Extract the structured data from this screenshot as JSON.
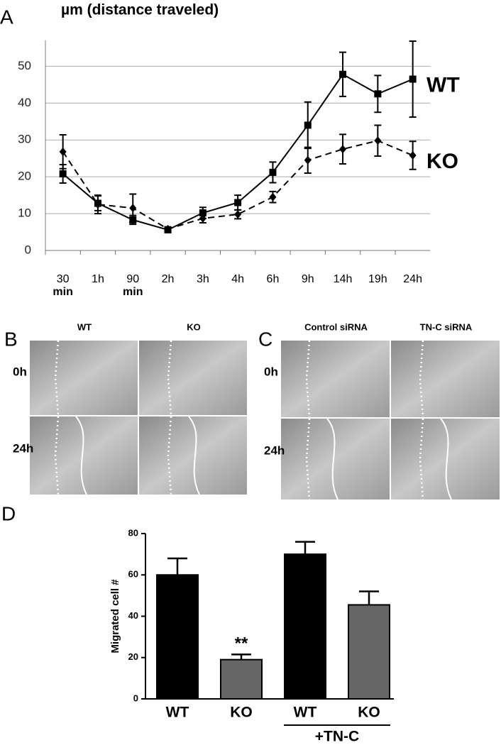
{
  "chart_data": [
    {
      "type": "line",
      "panel": "A",
      "title": "µm (distance traveled)",
      "categories": [
        "30 min",
        "1h",
        "90 min",
        "2h",
        "3h",
        "4h",
        "6h",
        "9h",
        "14h",
        "19h",
        "24h"
      ],
      "series": [
        {
          "name": "WT",
          "color": "#000000",
          "marker": "square",
          "dash": false,
          "values": [
            20.8,
            12.8,
            8.3,
            5.6,
            10.2,
            13,
            21.2,
            34,
            47.8,
            42.5,
            46.5
          ],
          "errors": [
            2.5,
            2,
            1.2,
            0.6,
            1.5,
            2,
            2.8,
            6.3,
            6,
            5,
            10.3
          ]
        },
        {
          "name": "KO",
          "color": "#000000",
          "marker": "diamond",
          "dash": true,
          "values": [
            26.8,
            12.5,
            11.5,
            5.8,
            8.7,
            9.8,
            14.5,
            24.5,
            27.5,
            29.8,
            25.8
          ],
          "errors": [
            4.6,
            2.5,
            3.8,
            0.6,
            1.2,
            1.2,
            1.5,
            3.5,
            4,
            4.2,
            3.8
          ]
        }
      ],
      "ylim": [
        0,
        57
      ],
      "yticks": [
        0,
        10,
        20,
        30,
        40,
        50
      ],
      "grid": true
    },
    {
      "type": "bar",
      "panel": "D",
      "ylabel": "Migrated cell #",
      "categories": [
        "WT",
        "KO",
        "WT",
        "KO"
      ],
      "values": [
        60,
        19,
        70,
        45.5
      ],
      "errors": [
        8,
        2.5,
        6,
        6.5
      ],
      "colors": [
        "#000000",
        "#666666",
        "#000000",
        "#666666"
      ],
      "annotations": [
        {
          "category": 1,
          "text": "**"
        }
      ],
      "group_label": {
        "text": "+TN-C",
        "from": 2,
        "to": 3
      },
      "ylim": [
        0,
        80
      ],
      "yticks": [
        0,
        20,
        40,
        60,
        80
      ],
      "grid": false
    }
  ],
  "panels": [
    {
      "letter": "B",
      "columns": [
        "WT",
        "KO"
      ],
      "rows": [
        "0h",
        "24h"
      ]
    },
    {
      "letter": "C",
      "columns": [
        "Control siRNA",
        "TN-C siRNA"
      ],
      "rows": [
        "0h",
        "24h"
      ]
    }
  ]
}
